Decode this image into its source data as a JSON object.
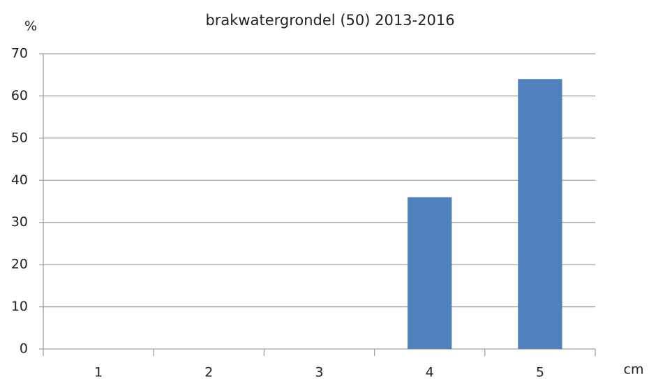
{
  "chart_data": {
    "type": "bar",
    "title": "brakwatergrondel (50) 2013-2016",
    "y_label": "%",
    "x_label": "cm",
    "categories": [
      "1",
      "2",
      "3",
      "4",
      "5"
    ],
    "values": [
      0,
      0,
      0,
      36,
      64
    ],
    "color": "#4f81bd",
    "ylim": [
      0,
      70
    ],
    "yticks": [
      0,
      10,
      20,
      30,
      40,
      50,
      60,
      70
    ],
    "grid": true
  }
}
